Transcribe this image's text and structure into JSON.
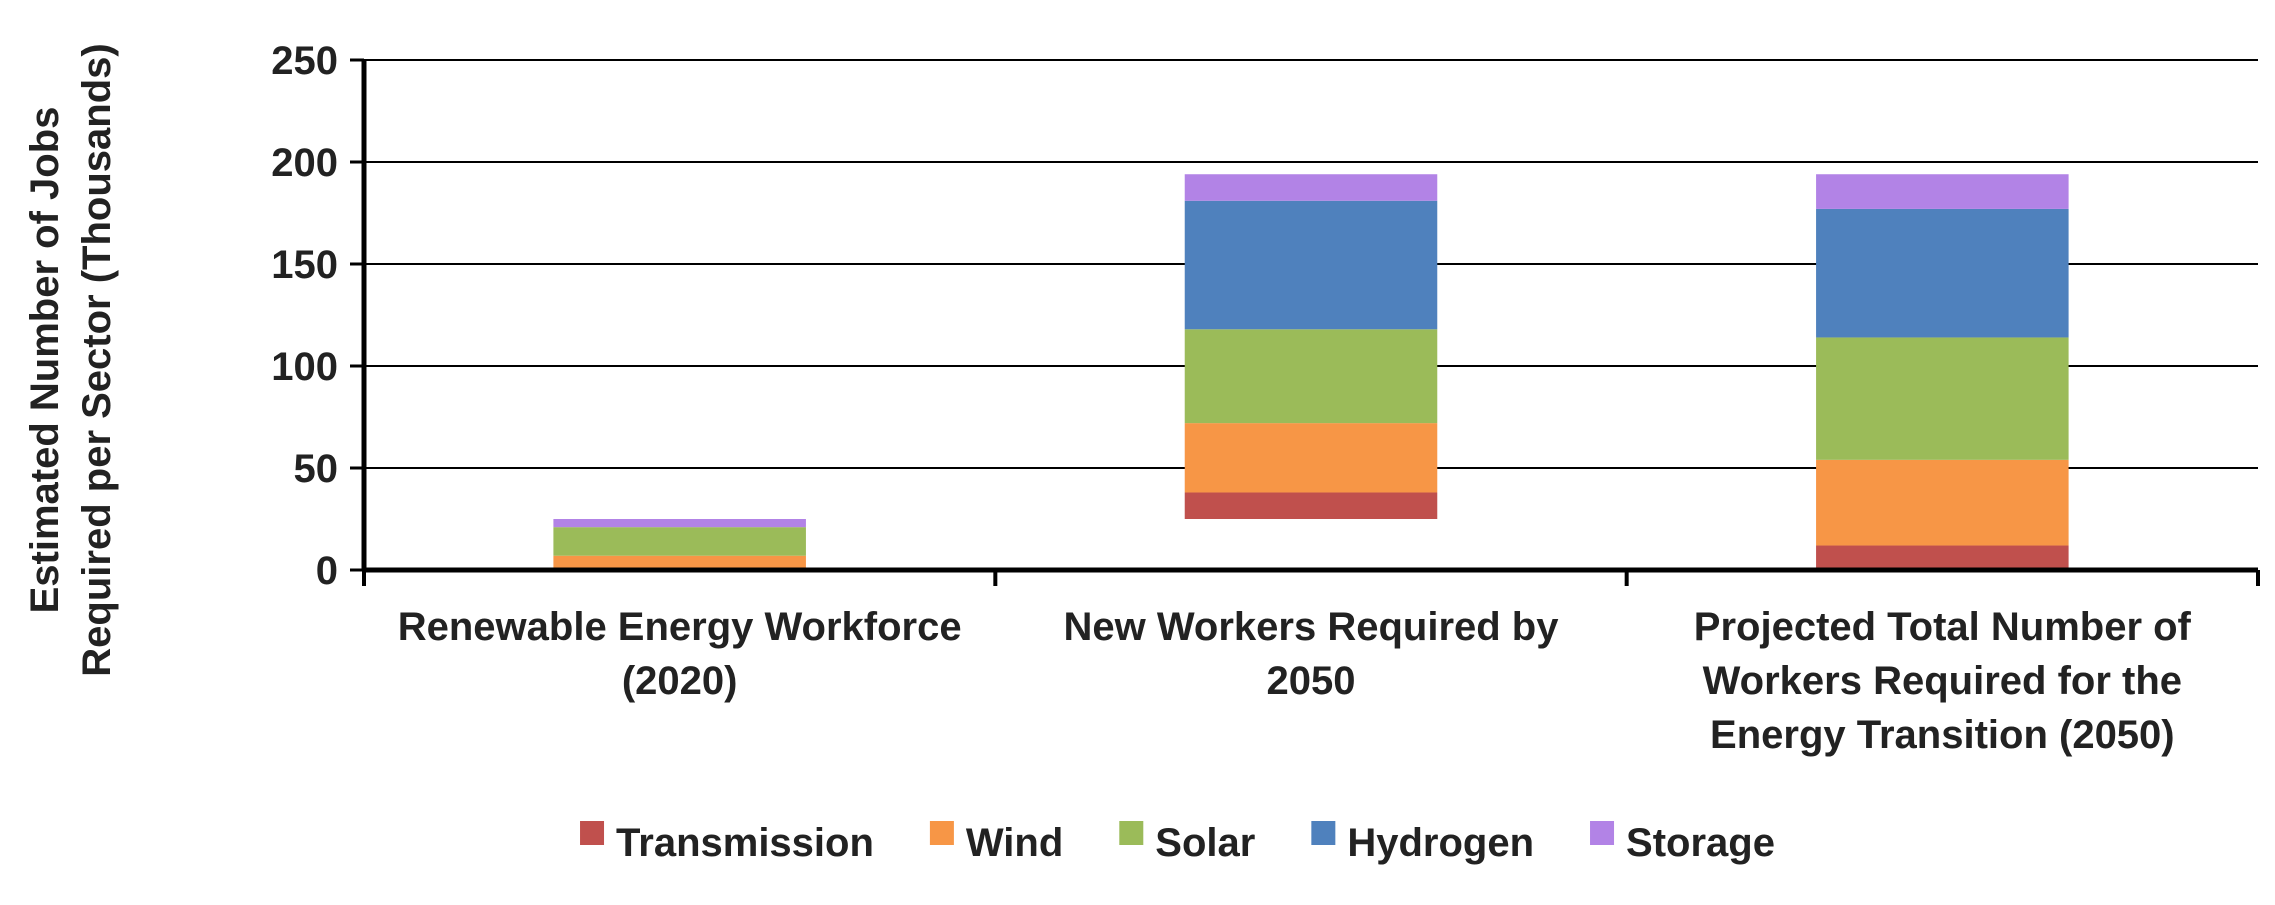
{
  "chart_data": {
    "type": "bar",
    "stacked": true,
    "categories": [
      [
        "Renewable Energy Workforce",
        "(2020)"
      ],
      [
        "New Workers Required by",
        "2050"
      ],
      [
        "Projected Total Number of",
        "Workers Required for the",
        "Energy Transition (2050)"
      ]
    ],
    "series": [
      {
        "name": "Transmission",
        "color": "#c0504d",
        "values": [
          0,
          13,
          12
        ]
      },
      {
        "name": "Wind",
        "color": "#f79646",
        "values": [
          7,
          34,
          42
        ]
      },
      {
        "name": "Solar",
        "color": "#9bbb59",
        "values": [
          14,
          46,
          60
        ]
      },
      {
        "name": "Hydrogen",
        "color": "#4f81bd",
        "values": [
          0,
          63,
          63
        ]
      },
      {
        "name": "Storage",
        "color": "#b283e6",
        "values": [
          4,
          13,
          17
        ]
      }
    ],
    "bases": [
      0,
      25,
      0
    ],
    "ylim": [
      0,
      250
    ],
    "yticks": [
      0,
      50,
      100,
      150,
      200,
      250
    ],
    "ylabel": [
      "Estimated Number of Jobs",
      "Required per Sector (Thousands)"
    ],
    "xlabel": "",
    "title": "",
    "grid": true,
    "legend": "bottom"
  }
}
